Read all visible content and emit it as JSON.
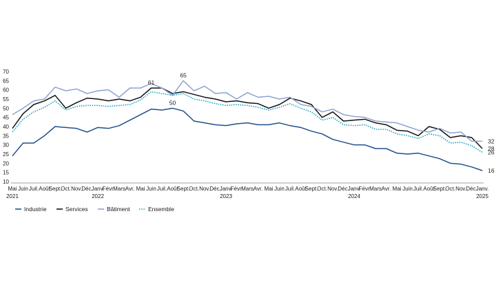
{
  "chart_data": {
    "type": "line",
    "title": "",
    "xlabel": "",
    "ylabel": "",
    "ylim": [
      10,
      70
    ],
    "yticks": [
      10,
      15,
      20,
      25,
      30,
      35,
      40,
      45,
      50,
      55,
      60,
      65,
      70
    ],
    "grid": false,
    "legend_position": "bottom-left",
    "month_labels": [
      "Mai",
      "Juin",
      "Juil.",
      "Août",
      "Sept.",
      "Oct.",
      "Nov.",
      "Déc.",
      "Janv.",
      "Févr.",
      "Mars",
      "Avr.",
      "Mai",
      "Juin",
      "Juil.",
      "Août",
      "Sept.",
      "Oct.",
      "Nov.",
      "Déc.",
      "Janv.",
      "Févr.",
      "Mars",
      "Avr.",
      "Mai",
      "Juin",
      "Juil.",
      "Août",
      "Sept.",
      "Oct.",
      "Nov.",
      "Déc.",
      "Janv.",
      "Févr.",
      "Mars",
      "Avr.",
      "Mai",
      "Juin",
      "Juil.",
      "Août",
      "Sept.",
      "Oct.",
      "Nov.",
      "Déc.",
      "Janv."
    ],
    "year_labels": [
      {
        "index": 0,
        "label": "2021"
      },
      {
        "index": 8,
        "label": "2022"
      },
      {
        "index": 20,
        "label": "2023"
      },
      {
        "index": 32,
        "label": "2024"
      },
      {
        "index": 44,
        "label": "2025"
      }
    ],
    "series": [
      {
        "name": "Industrie",
        "color": "#1f4e8c",
        "style": "solid",
        "values": [
          24,
          31,
          31,
          35,
          40,
          39.5,
          39,
          37,
          39.5,
          39,
          40.5,
          43.5,
          46.5,
          49.5,
          49,
          50,
          48.5,
          43,
          42,
          41,
          40.5,
          41.5,
          42,
          41,
          41,
          42,
          40.5,
          39.5,
          37.5,
          36,
          33,
          31.5,
          30,
          30,
          28,
          28,
          25.5,
          25,
          25.5,
          24,
          22.5,
          20,
          19.5,
          18,
          16
        ]
      },
      {
        "name": "Services",
        "color": "#111111",
        "style": "solid",
        "values": [
          39,
          47,
          52,
          54,
          57,
          50,
          53,
          55.5,
          55,
          54,
          55,
          54,
          56,
          61,
          61,
          58,
          59,
          57.5,
          56,
          55,
          53.5,
          54,
          53,
          52.5,
          50,
          52,
          55.5,
          54,
          52,
          45,
          48,
          43,
          43.5,
          44,
          42,
          41,
          38,
          37.5,
          35,
          40,
          38.5,
          34,
          35,
          34,
          28
        ]
      },
      {
        "name": "Bâtiment",
        "color": "#8ea2cf",
        "style": "solid",
        "values": [
          46.5,
          50,
          54,
          55,
          61.5,
          59.5,
          60.5,
          58,
          59.5,
          60,
          56,
          61,
          61,
          63.5,
          61,
          57,
          65,
          59.5,
          62,
          58,
          58.5,
          55,
          58.5,
          56,
          56.5,
          55,
          56,
          52,
          51,
          48,
          49.5,
          46.5,
          45.5,
          45,
          43,
          42.5,
          42,
          40,
          38,
          37,
          39,
          36.5,
          37,
          32,
          32
        ]
      },
      {
        "name": "Ensemble",
        "color": "#1fa3c7",
        "style": "dotted",
        "values": [
          37,
          44,
          48,
          50.5,
          54,
          49,
          51,
          51.5,
          51.5,
          51,
          51.5,
          52,
          54.5,
          59,
          58,
          57,
          58,
          55,
          54,
          52.5,
          51.5,
          52,
          51.5,
          50.5,
          49,
          50.5,
          52.5,
          50,
          48,
          43.5,
          45,
          41,
          40.5,
          41,
          38.5,
          38.5,
          36,
          35,
          33.5,
          36,
          35,
          31,
          31.5,
          29.5,
          26
        ]
      }
    ],
    "annotations": [
      {
        "label": "61",
        "x_index": 13,
        "y": 61
      },
      {
        "label": "65",
        "x_index": 16,
        "y": 65
      },
      {
        "label": "50",
        "x_index": 15,
        "y": 50
      },
      {
        "label": "32",
        "x_index": 44,
        "y": 32
      },
      {
        "label": "28",
        "x_index": 44,
        "y": 28
      },
      {
        "label": "26",
        "x_index": 44,
        "y": 26
      },
      {
        "label": "16",
        "x_index": 44,
        "y": 16
      }
    ]
  }
}
